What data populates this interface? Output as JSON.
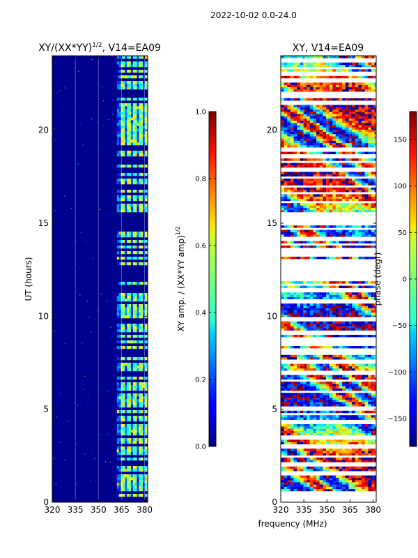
{
  "suptitle": "2022-10-02 0.0-24.0",
  "xlabel_shared": "frequency (MHz)",
  "chart_data": [
    {
      "type": "heatmap",
      "title_main": "XY/(XX*YY)",
      "title_sup": "1/2",
      "title_tail": ", V14=EA09",
      "xlabel": "",
      "ylabel": "UT (hours)",
      "xlim": [
        320,
        382
      ],
      "ylim": [
        0,
        24
      ],
      "xticks": [
        320,
        335,
        350,
        365,
        380
      ],
      "yticks": [
        0,
        5,
        10,
        15,
        20
      ],
      "band_lines_x": [
        335,
        350,
        365,
        380
      ],
      "bright_columns": [
        365,
        369,
        373,
        377,
        381
      ],
      "colorbar": {
        "label_main": "XY amp. / (XX*YY amp)",
        "label_sup": "1/2",
        "range": [
          0.0,
          1.0
        ],
        "ticks": [
          "0.0",
          "0.2",
          "0.4",
          "0.6",
          "0.8",
          "1.0"
        ],
        "tick_values": [
          0.0,
          0.2,
          0.4,
          0.6,
          0.8,
          1.0
        ]
      }
    },
    {
      "type": "heatmap",
      "title": "XY, V14=EA09",
      "xlabel": "frequency (MHz)",
      "ylabel": "",
      "xlim": [
        320,
        382
      ],
      "ylim": [
        0,
        24
      ],
      "xticks": [
        320,
        335,
        350,
        365,
        380
      ],
      "yticks": [
        0,
        5,
        10,
        15,
        20
      ],
      "band_lines_x": [
        335,
        350,
        365,
        380
      ],
      "colorbar": {
        "label": "phase (degr)",
        "range": [
          -180,
          180
        ],
        "ticks": [
          "150",
          "100",
          "50",
          "0",
          "−50",
          "−100",
          "−150"
        ],
        "tick_values": [
          150,
          100,
          50,
          0,
          -50,
          -100,
          -150
        ]
      }
    }
  ],
  "flagged_time_ranges": [
    [
      0.0,
      0.3
    ],
    [
      0.45,
      0.5
    ],
    [
      1.5,
      1.6
    ],
    [
      2.0,
      2.15
    ],
    [
      2.45,
      2.5
    ],
    [
      3.0,
      3.1
    ],
    [
      3.45,
      3.55
    ],
    [
      4.3,
      4.35
    ],
    [
      4.75,
      4.8
    ],
    [
      5.0,
      5.05
    ],
    [
      5.95,
      6.0
    ],
    [
      6.5,
      6.55
    ],
    [
      6.9,
      7.0
    ],
    [
      7.55,
      7.6
    ],
    [
      7.95,
      8.0
    ],
    [
      8.15,
      8.25
    ],
    [
      8.45,
      8.55
    ],
    [
      8.75,
      8.8
    ],
    [
      9.05,
      9.15
    ],
    [
      9.75,
      9.85
    ],
    [
      10.7,
      10.8
    ],
    [
      11.35,
      11.45
    ],
    [
      11.65,
      11.7
    ],
    [
      11.95,
      12.05
    ],
    [
      12.2,
      12.3
    ],
    [
      12.45,
      12.5
    ],
    [
      12.7,
      12.75
    ],
    [
      12.95,
      13.05
    ],
    [
      13.3,
      13.35
    ],
    [
      13.55,
      13.6
    ],
    [
      13.85,
      13.9
    ],
    [
      14.15,
      14.25
    ],
    [
      14.65,
      14.75
    ],
    [
      14.9,
      15.55
    ],
    [
      16.1,
      16.15
    ],
    [
      16.6,
      16.65
    ],
    [
      16.95,
      17.0
    ],
    [
      17.45,
      17.5
    ],
    [
      17.85,
      17.95
    ],
    [
      18.3,
      18.35
    ],
    [
      18.55,
      18.6
    ],
    [
      18.95,
      19.05
    ],
    [
      21.45,
      21.5
    ],
    [
      21.75,
      22.05
    ],
    [
      22.65,
      22.7
    ],
    [
      22.95,
      23.05
    ],
    [
      23.3,
      23.35
    ],
    [
      23.75,
      23.8
    ]
  ]
}
